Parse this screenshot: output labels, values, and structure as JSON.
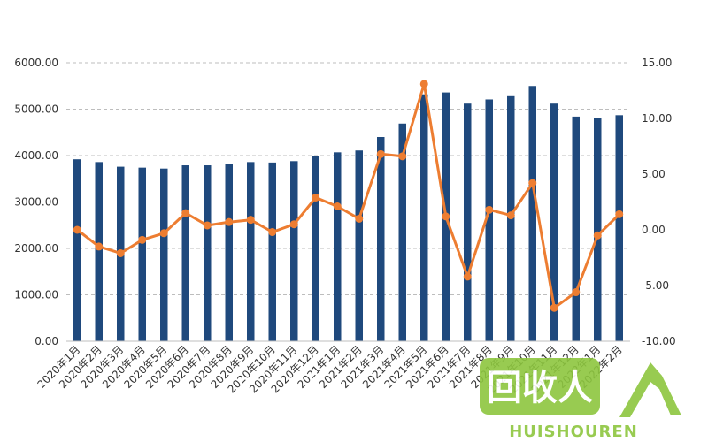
{
  "chart_data": {
    "type": "bar+line",
    "title": "",
    "categories": [
      "2020年1月",
      "2020年2月",
      "2020年3月",
      "2020年4月",
      "2020年5月",
      "2020年6月",
      "2020年7月",
      "2020年8月",
      "2020年9月",
      "2020年10月",
      "2020年11月",
      "2020年12月",
      "2021年1月",
      "2021年2月",
      "2021年3月",
      "2021年4月",
      "2021年5月",
      "2021年6月",
      "2021年7月",
      "2021年8月",
      "2021年9月",
      "2021年10月",
      "2021年11月",
      "2021年12月",
      "2022年1月",
      "2022年2月"
    ],
    "series": [
      {
        "type": "bar",
        "axis": "left",
        "color": "#1f497d",
        "values": [
          3920,
          3860,
          3760,
          3740,
          3720,
          3790,
          3790,
          3820,
          3860,
          3850,
          3880,
          3990,
          4070,
          4110,
          4400,
          4690,
          5320,
          5360,
          5120,
          5210,
          5280,
          5500,
          5120,
          4840,
          4810,
          4870
        ]
      },
      {
        "type": "line",
        "axis": "right",
        "color": "#ed7d31",
        "values": [
          0.0,
          -1.5,
          -2.1,
          -0.9,
          -0.3,
          1.5,
          0.4,
          0.7,
          0.9,
          -0.2,
          0.5,
          2.9,
          2.1,
          1.0,
          6.8,
          6.6,
          13.1,
          1.2,
          -4.2,
          1.8,
          1.3,
          4.2,
          -7.0,
          -5.6,
          -0.5,
          1.4
        ]
      }
    ],
    "left_axis": {
      "min": 0,
      "max": 6000,
      "ticks": [
        "0.00",
        "1000.00",
        "2000.00",
        "3000.00",
        "4000.00",
        "5000.00",
        "6000.00"
      ]
    },
    "right_axis": {
      "min": -10,
      "max": 15,
      "ticks": [
        "-10.00",
        "-5.00",
        "0.00",
        "5.00",
        "10.00",
        "15.00"
      ]
    },
    "grid": true,
    "legend": "none"
  },
  "watermark": {
    "logo_text": "回收人",
    "brand_text": "HUISHOUREN",
    "color": "#8dc63f"
  }
}
